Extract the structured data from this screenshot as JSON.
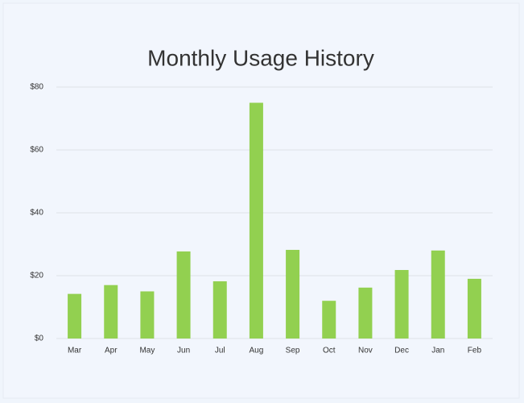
{
  "chart_data": {
    "type": "bar",
    "title": "Monthly Usage History",
    "categories": [
      "Mar",
      "Apr",
      "May",
      "Jun",
      "Jul",
      "Aug",
      "Sep",
      "Oct",
      "Nov",
      "Dec",
      "Jan",
      "Feb"
    ],
    "values": [
      14.2,
      17,
      15,
      27.7,
      18.2,
      75,
      28.2,
      12,
      16.2,
      21.8,
      28,
      19
    ],
    "color": "#92d050",
    "ylim": [
      0,
      80
    ],
    "yticks": [
      {
        "value": 0,
        "label": "$0"
      },
      {
        "value": 20,
        "label": "$20"
      },
      {
        "value": 40,
        "label": "$40"
      },
      {
        "value": 60,
        "label": "$60"
      },
      {
        "value": 80,
        "label": "$80"
      }
    ],
    "grid": true
  }
}
